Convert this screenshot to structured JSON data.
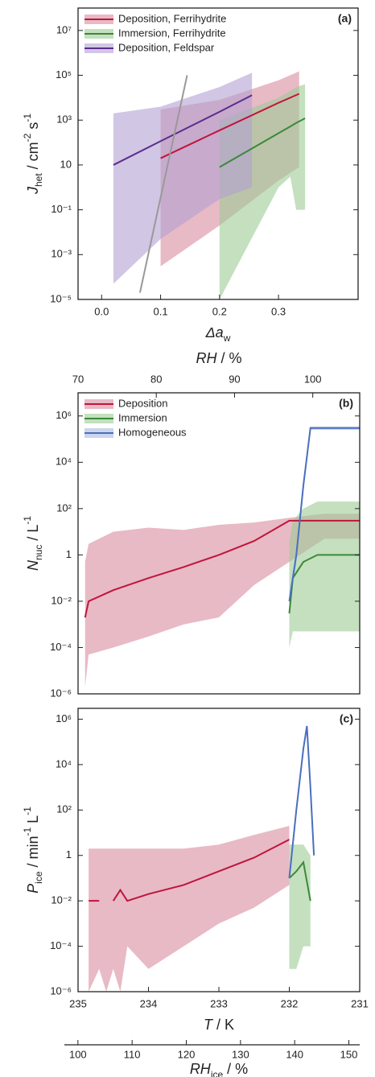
{
  "chart_data": [
    {
      "type": "line",
      "panel_label": "(a)",
      "yscale": "log",
      "legend": "upper left",
      "xlim": [
        -0.04,
        0.435
      ],
      "xticks": [
        {
          "value": 0,
          "label": "0.0"
        },
        0.1,
        0.2,
        0.3
      ],
      "ylim": [
        1e-05,
        100000000
      ],
      "yticks": [
        {
          "value": 10000000,
          "label": "10⁷"
        },
        {
          "value": 100000,
          "label": "10⁵"
        },
        {
          "value": 1000,
          "label": "10³"
        },
        10,
        {
          "value": 0.1,
          "label": "10⁻¹"
        },
        {
          "value": 0.001,
          "label": "10⁻³"
        },
        {
          "value": 1e-05,
          "label": "10⁻⁵"
        }
      ],
      "xlabel": [
        {
          "text": "Δa",
          "style": "italic"
        },
        {
          "text": "w",
          "style": "sub"
        }
      ],
      "ylabel": [
        {
          "text": "J",
          "style": "italic"
        },
        {
          "text": "het",
          "style": "sub"
        },
        {
          "text": " / cm"
        },
        {
          "text": "-2",
          "style": "sup"
        },
        {
          "text": " s"
        },
        {
          "text": "-1",
          "style": "sup"
        }
      ],
      "series": [
        {
          "name": "Deposition, Ferrihydrite",
          "color": "#c0143c",
          "band_color": "#d88c9f",
          "x": [
            0.1,
            0.2,
            0.3,
            0.335
          ],
          "values": [
            20,
            350,
            5900,
            15000
          ],
          "upper": [
            3000,
            8000,
            60000,
            150000
          ],
          "lower": [
            0.0003,
            0.02,
            2,
            8
          ]
        },
        {
          "name": "Immersion, Ferrihydrite",
          "color": "#3a8a3a",
          "band_color": "#9ccc95",
          "x": [
            0.2,
            0.3,
            0.32,
            0.33,
            0.345
          ],
          "values": [
            8,
            260,
            520,
            750,
            1200
          ],
          "upper": [
            1000,
            10000,
            20000,
            30000,
            40000
          ],
          "lower": [
            1e-05,
            1,
            3,
            0.1,
            0.1
          ]
        },
        {
          "name": "Deposition, Feldspar",
          "color": "#5b2d8e",
          "band_color": "#b3a0d2",
          "x": [
            0.02,
            0.1,
            0.2,
            0.255
          ],
          "values": [
            10,
            115,
            2350,
            13000
          ],
          "upper": [
            2000,
            4000,
            30000,
            130000
          ],
          "lower": [
            5e-05,
            0.005,
            0.3,
            1
          ]
        }
      ],
      "reference_line": {
        "color": "#999999",
        "x": [
          0.065,
          0.145
        ],
        "values": [
          2e-05,
          100000
        ]
      }
    },
    {
      "type": "line",
      "panel_label": "(b)",
      "yscale": "log",
      "legend": "upper left",
      "xlim": [
        235,
        231
      ],
      "ylim": [
        1e-06,
        10000000
      ],
      "yticks": [
        {
          "value": 1000000,
          "label": "10⁶"
        },
        {
          "value": 10000,
          "label": "10⁴"
        },
        {
          "value": 100,
          "label": "10²"
        },
        1,
        {
          "value": 0.01,
          "label": "10⁻²"
        },
        {
          "value": 0.0001,
          "label": "10⁻⁴"
        },
        {
          "value": 1e-06,
          "label": "10⁻⁶"
        }
      ],
      "ylabel": [
        {
          "text": "N",
          "style": "italic"
        },
        {
          "text": "nuc",
          "style": "sub"
        },
        {
          "text": " / L"
        },
        {
          "text": "-1",
          "style": "sup"
        }
      ],
      "top_axis": {
        "xlim": [
          70,
          106
        ],
        "xticks": [
          70,
          80,
          90,
          100
        ],
        "label": [
          {
            "text": "RH",
            "style": "italic"
          },
          {
            "text": " / %"
          }
        ]
      },
      "series": [
        {
          "name": "Deposition",
          "color": "#c0143c",
          "band_color": "#d88c9f",
          "x": [
            234.9,
            234.85,
            234.5,
            234,
            233.5,
            233,
            232.5,
            232,
            231.5,
            231
          ],
          "values": [
            0.002,
            0.01,
            0.03,
            0.1,
            0.3,
            1,
            4,
            30,
            30,
            30
          ],
          "upper": [
            0.5,
            3,
            10,
            15,
            12,
            20,
            25,
            40,
            60,
            60
          ],
          "lower": [
            2e-06,
            5e-05,
            0.0001,
            0.0003,
            0.001,
            0.002,
            0.05,
            0.5,
            5,
            5
          ]
        },
        {
          "name": "Immersion",
          "color": "#3a8a3a",
          "band_color": "#9ccc95",
          "x": [
            232,
            231.95,
            231.8,
            231.6,
            231
          ],
          "values": [
            0.003,
            0.1,
            0.5,
            1,
            1
          ],
          "upper": [
            3,
            30,
            100,
            200,
            200
          ],
          "lower": [
            0.0001,
            0.0005,
            0.0005,
            0.0005,
            0.0005
          ]
        },
        {
          "name": "Homogeneous",
          "color": "#4a6fbf",
          "band_color": "#a9b9e0",
          "x": [
            232,
            231.9,
            231.8,
            231.7,
            231
          ],
          "values": [
            0.01,
            1,
            1000,
            300000,
            300000
          ],
          "upper": [
            0.02,
            2,
            2000,
            350000,
            350000
          ],
          "lower": [
            0.005,
            0.5,
            500,
            250000,
            250000
          ]
        }
      ]
    },
    {
      "type": "line",
      "panel_label": "(c)",
      "yscale": "log",
      "xlim": [
        235,
        231
      ],
      "xticks": [
        235,
        234,
        233,
        232,
        231
      ],
      "ylim": [
        1e-06,
        3000000
      ],
      "yticks": [
        {
          "value": 1000000,
          "label": "10⁶"
        },
        {
          "value": 10000,
          "label": "10⁴"
        },
        {
          "value": 100,
          "label": "10²"
        },
        1,
        {
          "value": 0.01,
          "label": "10⁻²"
        },
        {
          "value": 0.0001,
          "label": "10⁻⁴"
        },
        {
          "value": 1e-06,
          "label": "10⁻⁶"
        }
      ],
      "xlabel": [
        {
          "text": "T",
          "style": "italic"
        },
        {
          "text": " / K"
        }
      ],
      "ylabel": [
        {
          "text": "P",
          "style": "italic"
        },
        {
          "text": "ice",
          "style": "sub"
        },
        {
          "text": " / min"
        },
        {
          "text": "-1",
          "style": "sup"
        },
        {
          "text": " L"
        },
        {
          "text": "-1",
          "style": "sup"
        }
      ],
      "bottom_axis": {
        "xlim": [
          97.5,
          152
        ],
        "xticks": [
          100,
          110,
          120,
          130,
          140,
          150
        ],
        "label": [
          {
            "text": "RH",
            "style": "italic"
          },
          {
            "text": "ice",
            "style": "sub"
          },
          {
            "text": " / %"
          }
        ]
      },
      "series": [
        {
          "color": "#c0143c",
          "band_color": "#d88c9f",
          "x": [
            234.85,
            234.7,
            234.6,
            234.5,
            234.4,
            234.3,
            234,
            233.5,
            233,
            232.5,
            232
          ],
          "values": [
            0.01,
            0.01,
            null,
            0.01,
            0.03,
            0.01,
            0.02,
            0.05,
            0.2,
            0.8,
            5
          ],
          "upper": [
            2,
            2,
            2,
            2,
            2,
            2,
            2,
            2,
            3,
            8,
            20
          ],
          "lower": [
            1e-06,
            1e-05,
            1e-06,
            1e-05,
            1e-06,
            0.0001,
            1e-05,
            0.0001,
            0.001,
            0.005,
            0.05
          ]
        },
        {
          "color": "#3a8a3a",
          "band_color": "#9ccc95",
          "x": [
            232,
            231.9,
            231.8,
            231.7
          ],
          "values": [
            0.1,
            0.2,
            0.5,
            0.01
          ],
          "upper": [
            3,
            3,
            3,
            1
          ],
          "lower": [
            1e-05,
            1e-05,
            0.0001,
            0.0001
          ]
        },
        {
          "color": "#4a6fbf",
          "x": [
            232,
            231.9,
            231.8,
            231.75,
            231.7,
            231.65
          ],
          "values": [
            0.1,
            100,
            50000,
            500000,
            1000,
            1
          ]
        }
      ]
    }
  ]
}
